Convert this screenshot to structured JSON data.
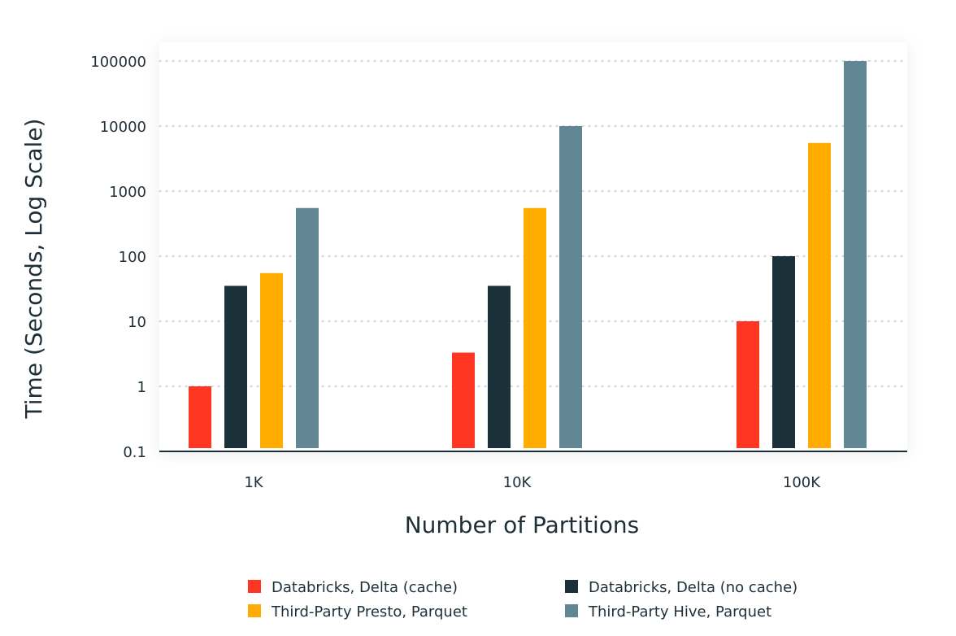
{
  "chart_data": {
    "type": "bar",
    "title": "",
    "xlabel": "Number of Partitions",
    "ylabel": "Time (Seconds, Log Scale)",
    "yscale": "log",
    "ylim": [
      0.1,
      100000
    ],
    "yticks": [
      0.1,
      1,
      10,
      100,
      1000,
      10000,
      100000
    ],
    "ytick_labels": [
      "0.1",
      "1",
      "10",
      "100",
      "1000",
      "10000",
      "100000"
    ],
    "categories": [
      "1K",
      "10K",
      "100K"
    ],
    "grid": true,
    "legend_position": "bottom",
    "series": [
      {
        "name": "Databricks, Delta (cache)",
        "color": "#ff3621",
        "values": [
          1,
          3.3,
          10
        ]
      },
      {
        "name": "Databricks, Delta (no cache)",
        "color": "#1b3139",
        "values": [
          35,
          35,
          100
        ]
      },
      {
        "name": "Third-Party Presto, Parquet",
        "color": "#ffab00",
        "values": [
          55,
          550,
          5500
        ]
      },
      {
        "name": "Third-Party Hive, Parquet",
        "color": "#618794",
        "values": [
          550,
          10000,
          100000
        ]
      }
    ]
  }
}
